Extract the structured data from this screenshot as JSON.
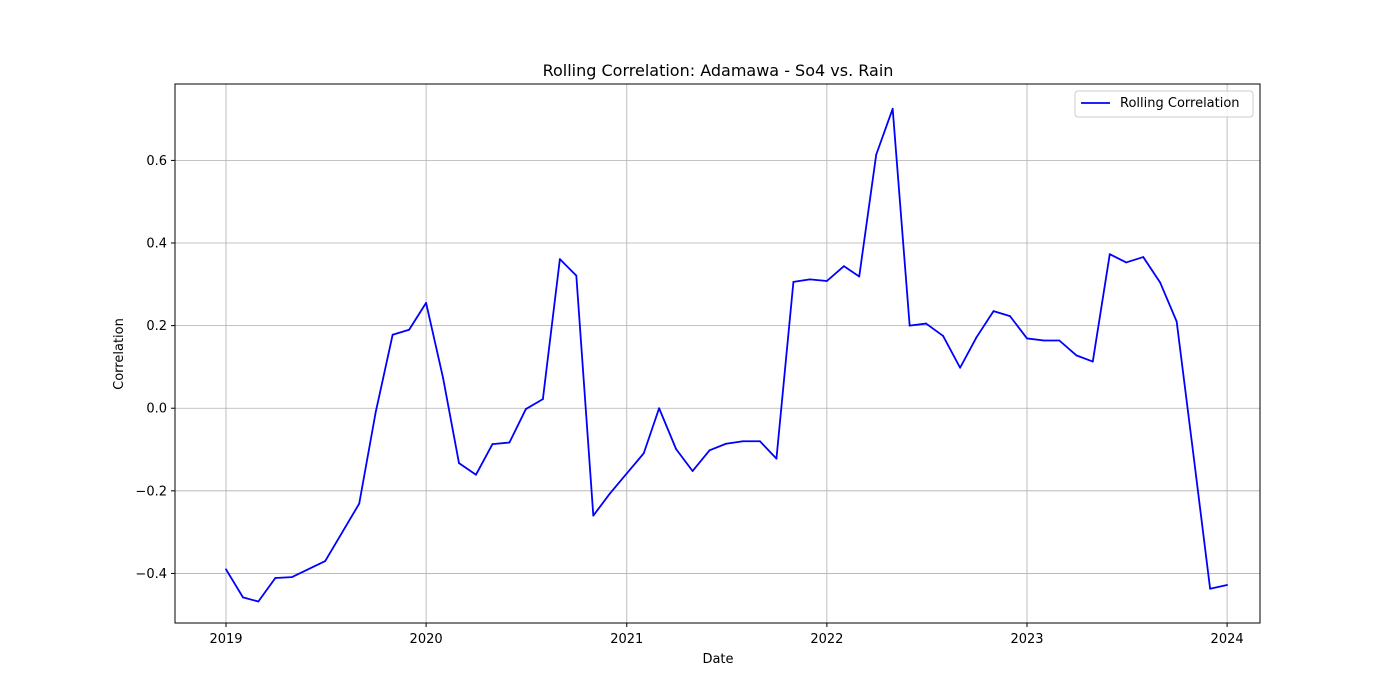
{
  "chart_data": {
    "type": "line",
    "title": "Rolling Correlation: Adamawa - So4 vs. Rain",
    "xlabel": "Date",
    "ylabel": "Correlation",
    "xlim": [
      "2018-09-30",
      "2024-03-01"
    ],
    "ylim": [
      -0.52,
      0.785
    ],
    "x_ticks": [
      "2019",
      "2020",
      "2021",
      "2022",
      "2023",
      "2024"
    ],
    "y_ticks": [
      -0.4,
      -0.2,
      0.0,
      0.2,
      0.4,
      0.6
    ],
    "y_tick_labels": [
      "−0.4",
      "−0.2",
      "0.0",
      "0.2",
      "0.4",
      "0.6"
    ],
    "grid": true,
    "legend_position": "top-right",
    "series": [
      {
        "name": "Rolling Correlation",
        "color": "#0000ff",
        "x": [
          "2019-01-01",
          "2019-02-01",
          "2019-03-01",
          "2019-04-01",
          "2019-05-01",
          "2019-07-01",
          "2019-09-01",
          "2019-10-01",
          "2019-11-01",
          "2019-12-01",
          "2020-01-01",
          "2020-02-01",
          "2020-03-01",
          "2020-04-01",
          "2020-05-01",
          "2020-06-01",
          "2020-07-01",
          "2020-08-01",
          "2020-09-01",
          "2020-10-01",
          "2020-11-01",
          "2020-12-01",
          "2021-01-01",
          "2021-02-01",
          "2021-03-01",
          "2021-04-01",
          "2021-05-01",
          "2021-06-01",
          "2021-07-01",
          "2021-08-01",
          "2021-09-01",
          "2021-10-01",
          "2021-11-01",
          "2021-12-01",
          "2022-01-01",
          "2022-02-01",
          "2022-03-01",
          "2022-04-01",
          "2022-05-01",
          "2022-06-01",
          "2022-07-01",
          "2022-08-01",
          "2022-09-01",
          "2022-10-01",
          "2022-11-01",
          "2022-12-01",
          "2023-01-01",
          "2023-02-01",
          "2023-03-01",
          "2023-04-01",
          "2023-05-01",
          "2023-06-01",
          "2023-07-01",
          "2023-08-01",
          "2023-09-01",
          "2023-10-01",
          "2023-11-01",
          "2023-12-01",
          "2024-01-01"
        ],
        "y": [
          -0.39,
          -0.458,
          -0.468,
          -0.411,
          -0.409,
          -0.37,
          -0.231,
          -0.01,
          0.178,
          0.19,
          0.255,
          0.073,
          -0.133,
          -0.161,
          -0.087,
          -0.083,
          -0.002,
          0.022,
          0.361,
          0.321,
          -0.26,
          -0.207,
          -0.158,
          -0.109,
          0.0,
          -0.099,
          -0.152,
          -0.102,
          -0.086,
          -0.08,
          -0.08,
          -0.122,
          0.306,
          0.312,
          0.308,
          0.344,
          0.319,
          0.614,
          0.725,
          0.2,
          0.205,
          0.175,
          0.098,
          0.172,
          0.235,
          0.223,
          0.169,
          0.164,
          0.164,
          0.128,
          0.113,
          0.373,
          0.353,
          0.366,
          0.304,
          0.21,
          -0.117,
          -0.437,
          -0.428
        ]
      }
    ]
  }
}
